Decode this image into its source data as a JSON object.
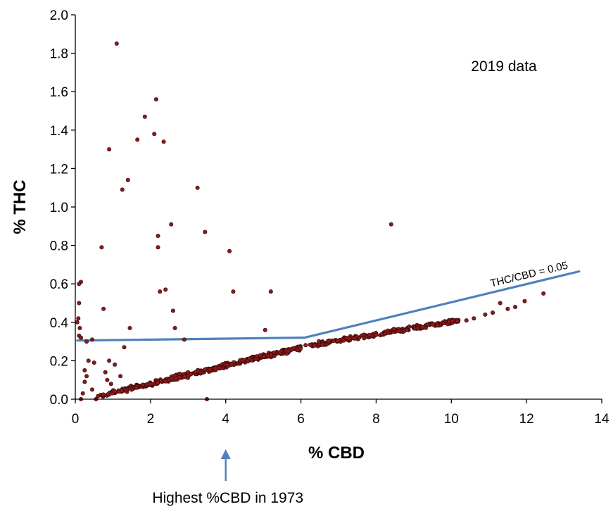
{
  "chart_data": {
    "type": "scatter",
    "xlabel": "% CBD",
    "ylabel": "% THC",
    "xlim": [
      0,
      14
    ],
    "ylim": [
      0,
      2.0
    ],
    "xticks": [
      "0",
      "2",
      "4",
      "6",
      "8",
      "10",
      "12",
      "14"
    ],
    "yticks": [
      "0.0",
      "0.2",
      "0.4",
      "0.6",
      "0.8",
      "1.0",
      "1.2",
      "1.4",
      "1.6",
      "1.8",
      "2.0"
    ],
    "grid": false,
    "legend": "none",
    "annotation": "2019 data",
    "colors": {
      "points": "#8b1a1a",
      "point_outline": "#2a0505",
      "lines": "#4f81bd",
      "axis": "#000000"
    },
    "outliers": [
      [
        1.1,
        1.85
      ],
      [
        2.15,
        1.56
      ],
      [
        1.85,
        1.47
      ],
      [
        2.1,
        1.38
      ],
      [
        1.65,
        1.35
      ],
      [
        2.35,
        1.34
      ],
      [
        0.9,
        1.3
      ],
      [
        1.4,
        1.14
      ],
      [
        1.25,
        1.09
      ],
      [
        3.25,
        1.1
      ],
      [
        2.55,
        0.91
      ],
      [
        8.4,
        0.91
      ],
      [
        3.45,
        0.87
      ],
      [
        2.2,
        0.85
      ],
      [
        2.2,
        0.79
      ],
      [
        0.7,
        0.79
      ],
      [
        4.1,
        0.77
      ],
      [
        0.15,
        0.61
      ],
      [
        0.1,
        0.6
      ],
      [
        2.25,
        0.56
      ],
      [
        2.4,
        0.57
      ],
      [
        4.2,
        0.56
      ],
      [
        5.2,
        0.56
      ],
      [
        0.1,
        0.5
      ],
      [
        0.75,
        0.47
      ],
      [
        2.6,
        0.46
      ],
      [
        0.08,
        0.42
      ],
      [
        0.05,
        0.4
      ],
      [
        0.12,
        0.37
      ],
      [
        1.45,
        0.37
      ],
      [
        2.65,
        0.37
      ],
      [
        0.1,
        0.33
      ],
      [
        0.15,
        0.32
      ],
      [
        0.3,
        0.3
      ],
      [
        0.45,
        0.31
      ],
      [
        2.9,
        0.31
      ],
      [
        5.05,
        0.36
      ],
      [
        1.3,
        0.27
      ],
      [
        0.35,
        0.2
      ],
      [
        0.5,
        0.19
      ],
      [
        0.9,
        0.2
      ],
      [
        1.05,
        0.18
      ],
      [
        0.25,
        0.15
      ],
      [
        0.3,
        0.12
      ],
      [
        0.8,
        0.14
      ],
      [
        0.85,
        0.1
      ],
      [
        0.45,
        0.05
      ],
      [
        0.2,
        0.03
      ],
      [
        0.15,
        0.0
      ],
      [
        3.5,
        0.0
      ],
      [
        0.55,
        0.0
      ],
      [
        0.25,
        0.09
      ],
      [
        1.2,
        0.12
      ],
      [
        0.95,
        0.08
      ]
    ],
    "band": {
      "segments": [
        {
          "x0": 0.6,
          "x1": 6.0,
          "y0": 0.015,
          "y1": 0.27,
          "count": 420
        },
        {
          "x0": 6.0,
          "x1": 10.2,
          "y0": 0.27,
          "y1": 0.41,
          "count": 210
        }
      ],
      "extra": [
        [
          10.6,
          0.42
        ],
        [
          10.9,
          0.44
        ],
        [
          11.3,
          0.5
        ],
        [
          11.5,
          0.47
        ],
        [
          11.7,
          0.48
        ],
        [
          11.95,
          0.51
        ],
        [
          12.45,
          0.55
        ],
        [
          10.4,
          0.41
        ],
        [
          11.1,
          0.45
        ]
      ]
    },
    "reference_lines": [
      {
        "points": [
          [
            0.05,
            0.305
          ],
          [
            6.1,
            0.32
          ]
        ]
      },
      {
        "points": [
          [
            6.1,
            0.32
          ],
          [
            13.4,
            0.665
          ]
        ],
        "label": "THC/CBD = 0.05"
      }
    ],
    "footnote": {
      "text": "Highest %CBD in 1973",
      "x_value": 4
    }
  }
}
